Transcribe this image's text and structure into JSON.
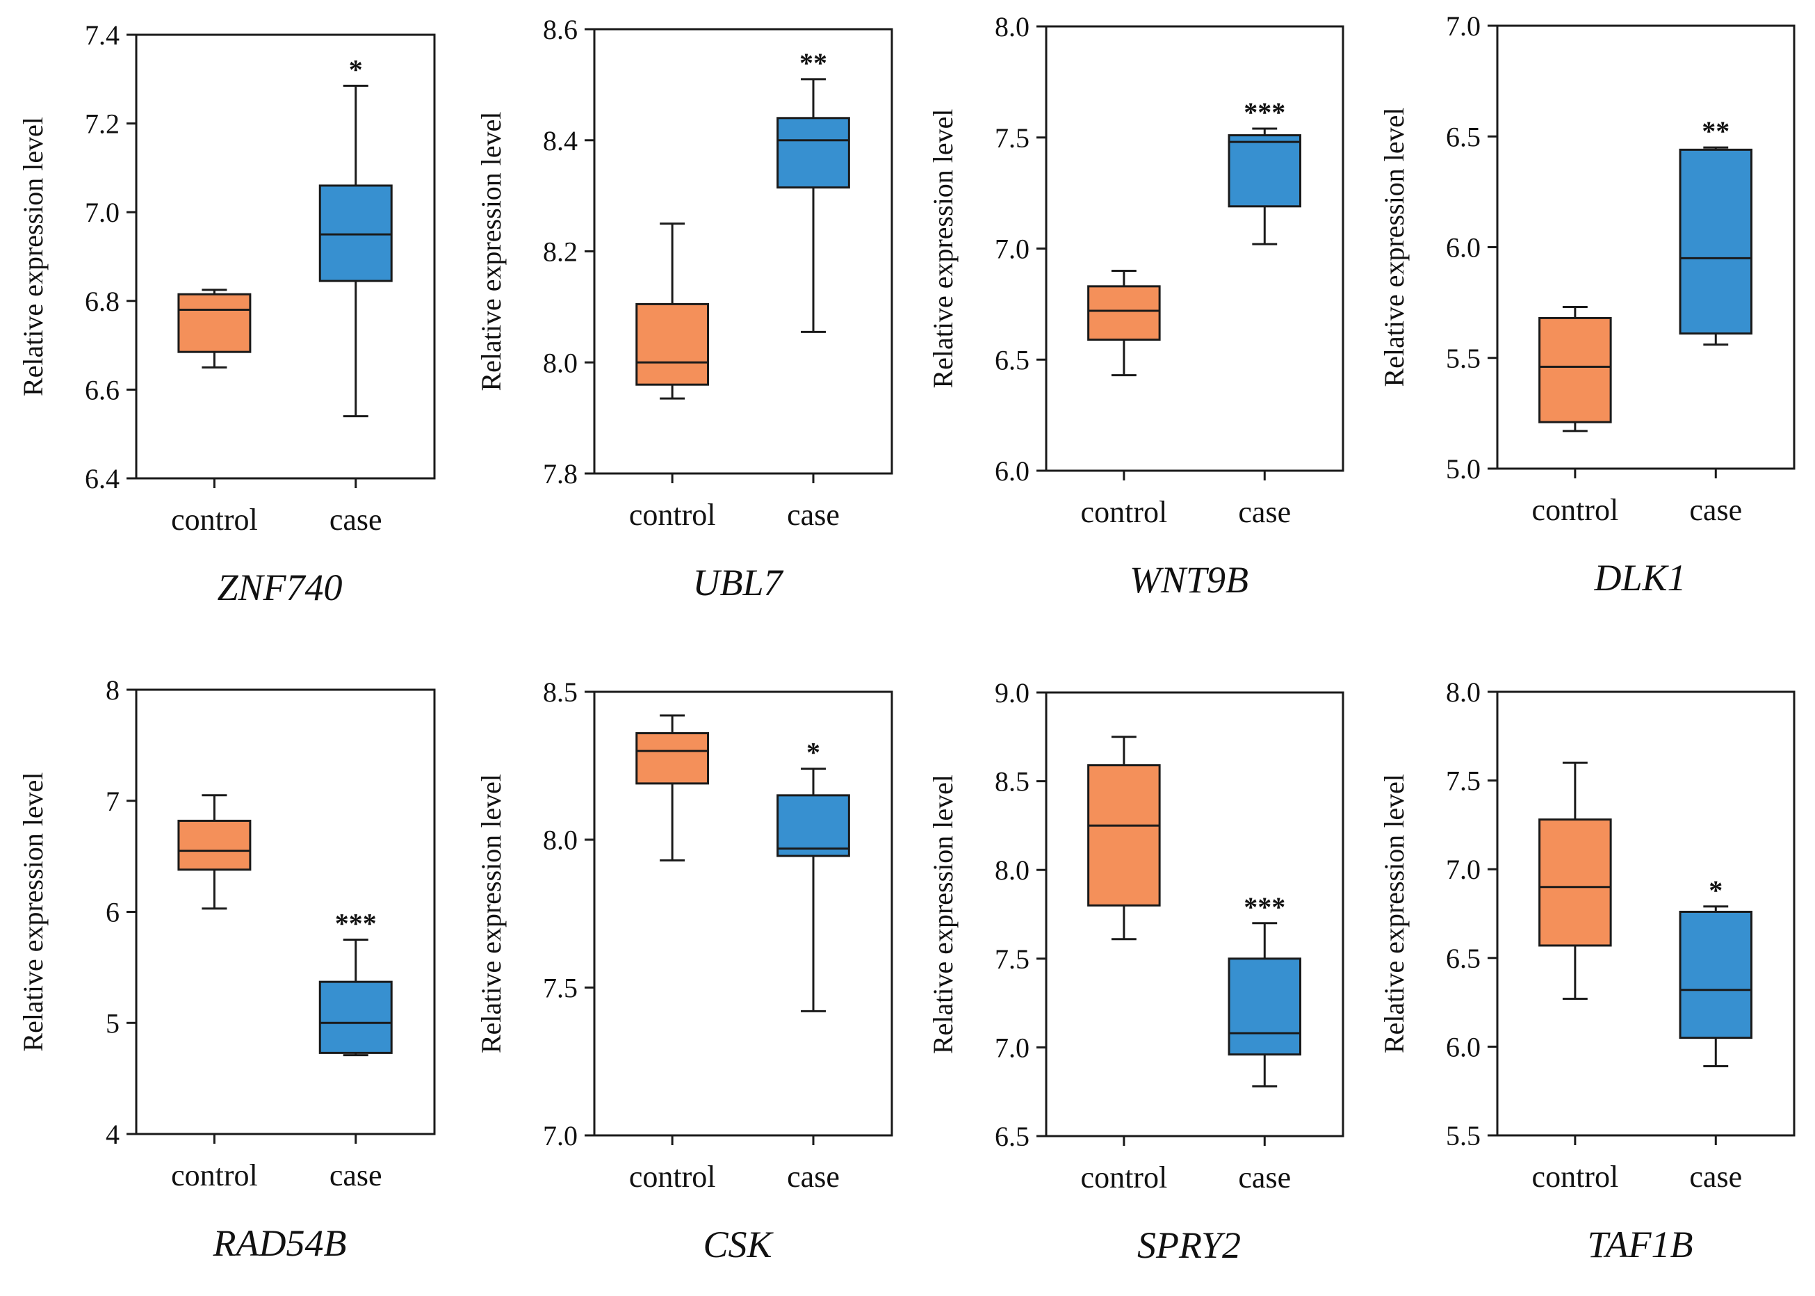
{
  "colors": {
    "control": "#F4905A",
    "case": "#3790D0",
    "stroke": "#1a1a1a"
  },
  "chart_data": [
    {
      "type": "box",
      "title": "ZNF740",
      "ylabel": "Relative expression level",
      "ylim": [
        6.4,
        7.4
      ],
      "yticks": [
        "6.4",
        "6.6",
        "6.8",
        "7.0",
        "7.2",
        "7.4"
      ],
      "categories": [
        "control",
        "case"
      ],
      "boxes": [
        {
          "min": 6.65,
          "q1": 6.685,
          "median": 6.78,
          "q3": 6.815,
          "max": 6.825
        },
        {
          "min": 6.54,
          "q1": 6.845,
          "median": 6.95,
          "q3": 7.06,
          "max": 7.285
        }
      ],
      "significance": "*",
      "significance_on": 1
    },
    {
      "type": "box",
      "title": "UBL7",
      "ylabel": "Relative expression level",
      "ylim": [
        7.8,
        8.6
      ],
      "yticks": [
        "7.8",
        "8.0",
        "8.2",
        "8.4",
        "8.6"
      ],
      "categories": [
        "control",
        "case"
      ],
      "boxes": [
        {
          "min": 7.935,
          "q1": 7.96,
          "median": 8.0,
          "q3": 8.105,
          "max": 8.25
        },
        {
          "min": 8.055,
          "q1": 8.315,
          "median": 8.4,
          "q3": 8.44,
          "max": 8.51
        }
      ],
      "significance": "**",
      "significance_on": 1
    },
    {
      "type": "box",
      "title": "WNT9B",
      "ylabel": "Relative expression level",
      "ylim": [
        6.0,
        8.0
      ],
      "yticks": [
        "6.0",
        "6.5",
        "7.0",
        "7.5",
        "8.0"
      ],
      "categories": [
        "control",
        "case"
      ],
      "boxes": [
        {
          "min": 6.43,
          "q1": 6.59,
          "median": 6.72,
          "q3": 6.83,
          "max": 6.9
        },
        {
          "min": 7.02,
          "q1": 7.19,
          "median": 7.48,
          "q3": 7.51,
          "max": 7.54
        }
      ],
      "significance": "***",
      "significance_on": 1
    },
    {
      "type": "box",
      "title": "DLK1",
      "ylabel": "Relative expression level",
      "ylim": [
        5.0,
        7.0
      ],
      "yticks": [
        "5.0",
        "5.5",
        "6.0",
        "6.5",
        "7.0"
      ],
      "categories": [
        "control",
        "case"
      ],
      "boxes": [
        {
          "min": 5.17,
          "q1": 5.21,
          "median": 5.46,
          "q3": 5.68,
          "max": 5.73
        },
        {
          "min": 5.56,
          "q1": 5.61,
          "median": 5.95,
          "q3": 6.44,
          "max": 6.45
        }
      ],
      "significance": "**",
      "significance_on": 1
    },
    {
      "type": "box",
      "title": "RAD54B",
      "ylabel": "Relative expression level",
      "ylim": [
        4,
        8
      ],
      "yticks": [
        "4",
        "5",
        "6",
        "7",
        "8"
      ],
      "categories": [
        "control",
        "case"
      ],
      "boxes": [
        {
          "min": 6.03,
          "q1": 6.38,
          "median": 6.55,
          "q3": 6.82,
          "max": 7.05
        },
        {
          "min": 4.71,
          "q1": 4.73,
          "median": 5.0,
          "q3": 5.37,
          "max": 5.75
        }
      ],
      "significance": "***",
      "significance_on": 1
    },
    {
      "type": "box",
      "title": "CSK",
      "ylabel": "Relative expression level",
      "ylim": [
        7.0,
        8.5
      ],
      "yticks": [
        "7.0",
        "7.5",
        "8.0",
        "8.5"
      ],
      "categories": [
        "control",
        "case"
      ],
      "boxes": [
        {
          "min": 7.93,
          "q1": 8.19,
          "median": 8.3,
          "q3": 8.36,
          "max": 8.42
        },
        {
          "min": 7.42,
          "q1": 7.945,
          "median": 7.97,
          "q3": 8.15,
          "max": 8.24
        }
      ],
      "significance": "*",
      "significance_on": 1
    },
    {
      "type": "box",
      "title": "SPRY2",
      "ylabel": "Relative expression level",
      "ylim": [
        6.5,
        9.0
      ],
      "yticks": [
        "6.5",
        "7.0",
        "7.5",
        "8.0",
        "8.5",
        "9.0"
      ],
      "categories": [
        "control",
        "case"
      ],
      "boxes": [
        {
          "min": 7.61,
          "q1": 7.8,
          "median": 8.25,
          "q3": 8.59,
          "max": 8.75
        },
        {
          "min": 6.78,
          "q1": 6.96,
          "median": 7.08,
          "q3": 7.5,
          "max": 7.7
        }
      ],
      "significance": "***",
      "significance_on": 1
    },
    {
      "type": "box",
      "title": "TAF1B",
      "ylabel": "Relative expression level",
      "ylim": [
        5.5,
        8.0
      ],
      "yticks": [
        "5.5",
        "6.0",
        "6.5",
        "7.0",
        "7.5",
        "8.0"
      ],
      "categories": [
        "control",
        "case"
      ],
      "boxes": [
        {
          "min": 6.27,
          "q1": 6.57,
          "median": 6.9,
          "q3": 7.28,
          "max": 7.6
        },
        {
          "min": 5.89,
          "q1": 6.05,
          "median": 6.32,
          "q3": 6.76,
          "max": 6.79
        }
      ],
      "significance": "*",
      "significance_on": 1
    }
  ]
}
